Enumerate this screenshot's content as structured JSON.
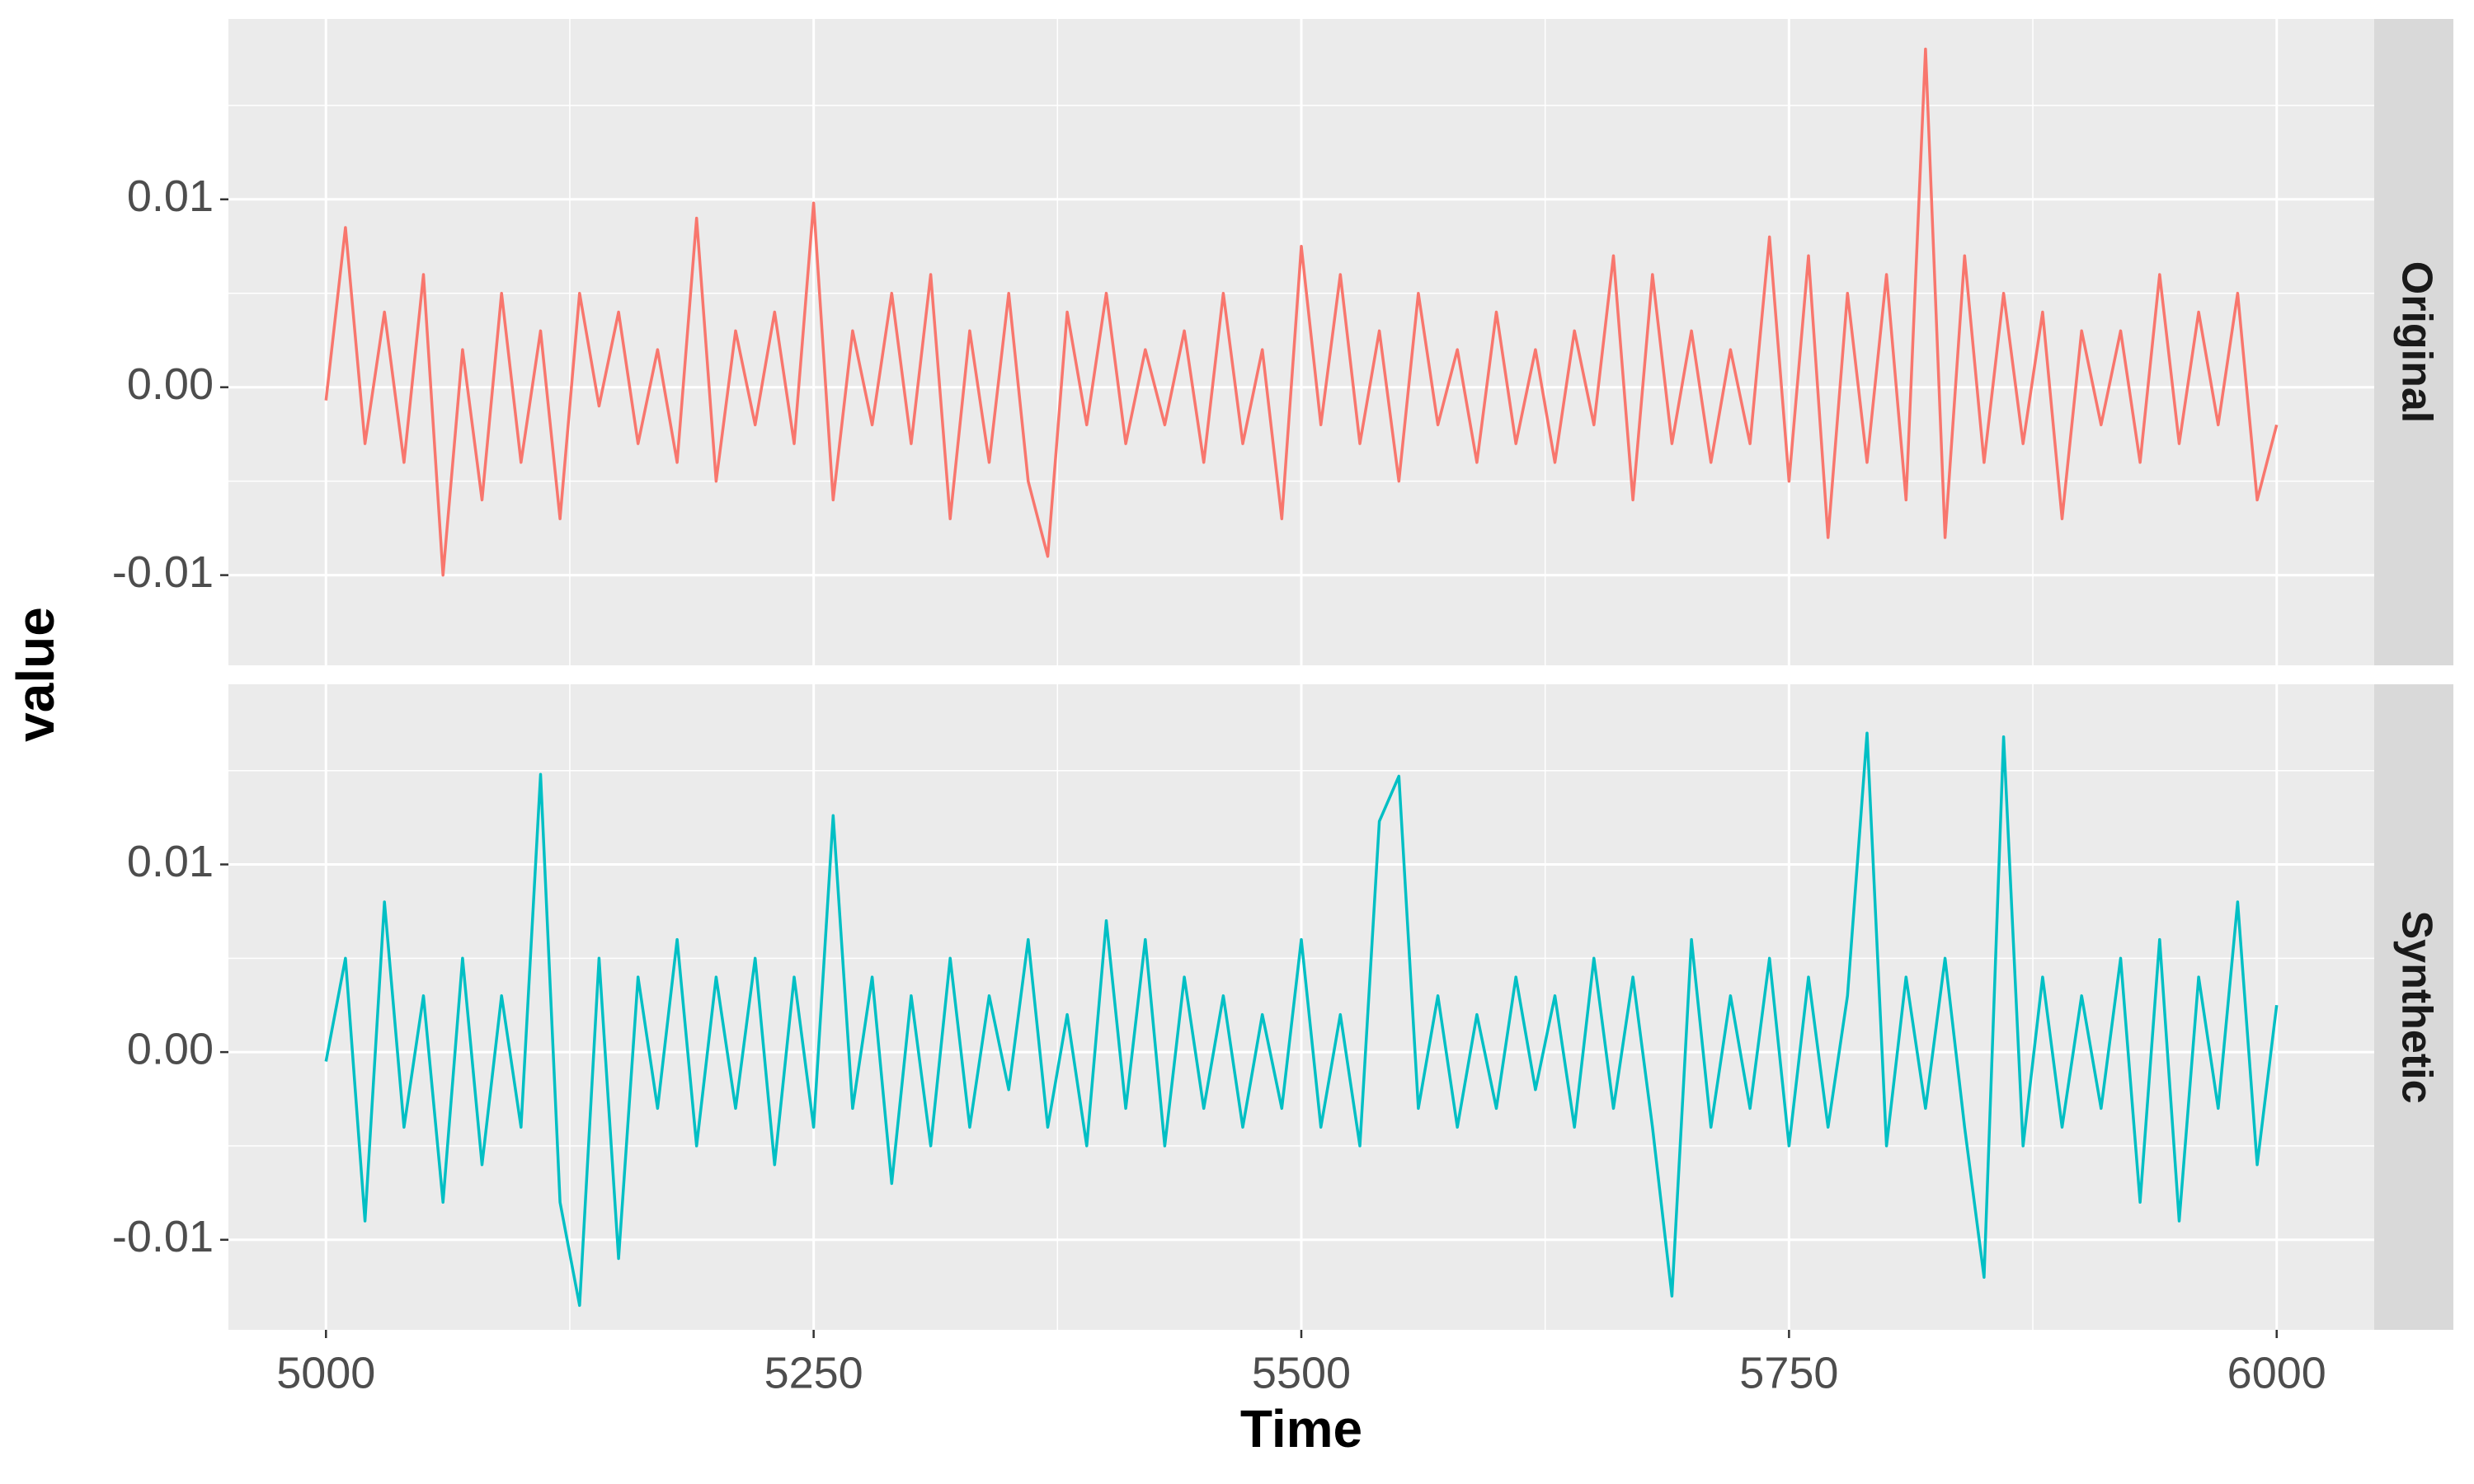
{
  "chart_data": [
    {
      "type": "line",
      "strip": "Original",
      "color": "#F8766D",
      "x": [
        5000,
        5010,
        5020,
        5030,
        5040,
        5050,
        5060,
        5070,
        5080,
        5090,
        5100,
        5110,
        5120,
        5130,
        5140,
        5150,
        5160,
        5170,
        5180,
        5190,
        5200,
        5210,
        5220,
        5230,
        5240,
        5250,
        5260,
        5270,
        5280,
        5290,
        5300,
        5310,
        5320,
        5330,
        5340,
        5350,
        5360,
        5370,
        5380,
        5390,
        5400,
        5410,
        5420,
        5430,
        5440,
        5450,
        5460,
        5470,
        5480,
        5490,
        5500,
        5510,
        5520,
        5530,
        5540,
        5550,
        5560,
        5570,
        5580,
        5590,
        5600,
        5610,
        5620,
        5630,
        5640,
        5650,
        5660,
        5670,
        5680,
        5690,
        5700,
        5710,
        5720,
        5730,
        5740,
        5750,
        5760,
        5770,
        5780,
        5790,
        5800,
        5810,
        5820,
        5830,
        5840,
        5850,
        5860,
        5870,
        5880,
        5890,
        5900,
        5910,
        5920,
        5930,
        5940,
        5950,
        5960,
        5970,
        5980,
        5990,
        6000
      ],
      "values": [
        -0.0007,
        0.0085,
        -0.003,
        0.004,
        -0.004,
        0.006,
        -0.01,
        0.002,
        -0.006,
        0.005,
        -0.004,
        0.003,
        -0.007,
        0.005,
        -0.001,
        0.004,
        -0.003,
        0.002,
        -0.004,
        0.009,
        -0.005,
        0.003,
        -0.002,
        0.004,
        -0.003,
        0.0098,
        -0.006,
        0.003,
        -0.002,
        0.005,
        -0.003,
        0.006,
        -0.007,
        0.003,
        -0.004,
        0.005,
        -0.005,
        -0.009,
        0.004,
        -0.002,
        0.005,
        -0.003,
        0.002,
        -0.002,
        0.003,
        -0.004,
        0.005,
        -0.003,
        0.002,
        -0.007,
        0.0075,
        -0.002,
        0.006,
        -0.003,
        0.003,
        -0.005,
        0.005,
        -0.002,
        0.002,
        -0.004,
        0.004,
        -0.003,
        0.002,
        -0.004,
        0.003,
        -0.002,
        0.007,
        -0.006,
        0.006,
        -0.003,
        0.003,
        -0.004,
        0.002,
        -0.003,
        0.008,
        -0.005,
        0.007,
        -0.008,
        0.005,
        -0.004,
        0.006,
        -0.006,
        0.018,
        -0.008,
        0.007,
        -0.004,
        0.005,
        -0.003,
        0.004,
        -0.007,
        0.003,
        -0.002,
        0.003,
        -0.004,
        0.006,
        -0.003,
        0.004,
        -0.002,
        0.005,
        -0.006,
        -0.002
      ],
      "xlim": [
        4950,
        6050
      ],
      "ylim": [
        -0.0148,
        0.0196
      ],
      "xticks": [
        5000,
        5250,
        5500,
        5750,
        6000
      ],
      "yticks": [
        -0.01,
        {
          "value": 0,
          "label": "0.00"
        },
        0.01
      ]
    },
    {
      "type": "line",
      "strip": "Synthetic",
      "color": "#00BFC4",
      "x": [
        5000,
        5010,
        5020,
        5030,
        5040,
        5050,
        5060,
        5070,
        5080,
        5090,
        5100,
        5110,
        5120,
        5130,
        5140,
        5150,
        5160,
        5170,
        5180,
        5190,
        5200,
        5210,
        5220,
        5230,
        5240,
        5250,
        5260,
        5270,
        5280,
        5290,
        5300,
        5310,
        5320,
        5330,
        5340,
        5350,
        5360,
        5370,
        5380,
        5390,
        5400,
        5410,
        5420,
        5430,
        5440,
        5450,
        5460,
        5470,
        5480,
        5490,
        5500,
        5510,
        5520,
        5530,
        5540,
        5550,
        5560,
        5570,
        5580,
        5590,
        5600,
        5610,
        5620,
        5630,
        5640,
        5650,
        5660,
        5670,
        5680,
        5690,
        5700,
        5710,
        5720,
        5730,
        5740,
        5750,
        5760,
        5770,
        5780,
        5790,
        5800,
        5810,
        5820,
        5830,
        5840,
        5850,
        5860,
        5870,
        5880,
        5890,
        5900,
        5910,
        5920,
        5930,
        5940,
        5950,
        5960,
        5970,
        5980,
        5990,
        6000
      ],
      "values": [
        -0.0005,
        0.005,
        -0.009,
        0.008,
        -0.004,
        0.003,
        -0.008,
        0.005,
        -0.006,
        0.003,
        -0.004,
        0.0148,
        -0.008,
        -0.0135,
        0.005,
        -0.011,
        0.004,
        -0.003,
        0.006,
        -0.005,
        0.004,
        -0.003,
        0.005,
        -0.006,
        0.004,
        -0.004,
        0.0126,
        -0.003,
        0.004,
        -0.007,
        0.003,
        -0.005,
        0.005,
        -0.004,
        0.003,
        -0.002,
        0.006,
        -0.004,
        0.002,
        -0.005,
        0.007,
        -0.003,
        0.006,
        -0.005,
        0.004,
        -0.003,
        0.003,
        -0.004,
        0.002,
        -0.003,
        0.006,
        -0.004,
        0.002,
        -0.005,
        0.0123,
        0.0147,
        -0.003,
        0.003,
        -0.004,
        0.002,
        -0.003,
        0.004,
        -0.002,
        0.003,
        -0.004,
        0.005,
        -0.003,
        0.004,
        -0.004,
        -0.013,
        0.006,
        -0.004,
        0.003,
        -0.003,
        0.005,
        -0.005,
        0.004,
        -0.004,
        0.003,
        0.017,
        -0.005,
        0.004,
        -0.003,
        0.005,
        -0.004,
        -0.012,
        0.0168,
        -0.005,
        0.004,
        -0.004,
        0.003,
        -0.003,
        0.005,
        -0.008,
        0.006,
        -0.009,
        0.004,
        -0.003,
        0.008,
        -0.006,
        0.0025
      ],
      "xlim": [
        4950,
        6050
      ],
      "ylim": [
        -0.0148,
        0.0196
      ],
      "xticks": [
        5000,
        5250,
        5500,
        5750,
        6000
      ],
      "yticks": [
        -0.01,
        {
          "value": 0,
          "label": "0.00"
        },
        0.01
      ]
    }
  ],
  "axis_titles": {
    "x": "Time",
    "y": "value"
  }
}
